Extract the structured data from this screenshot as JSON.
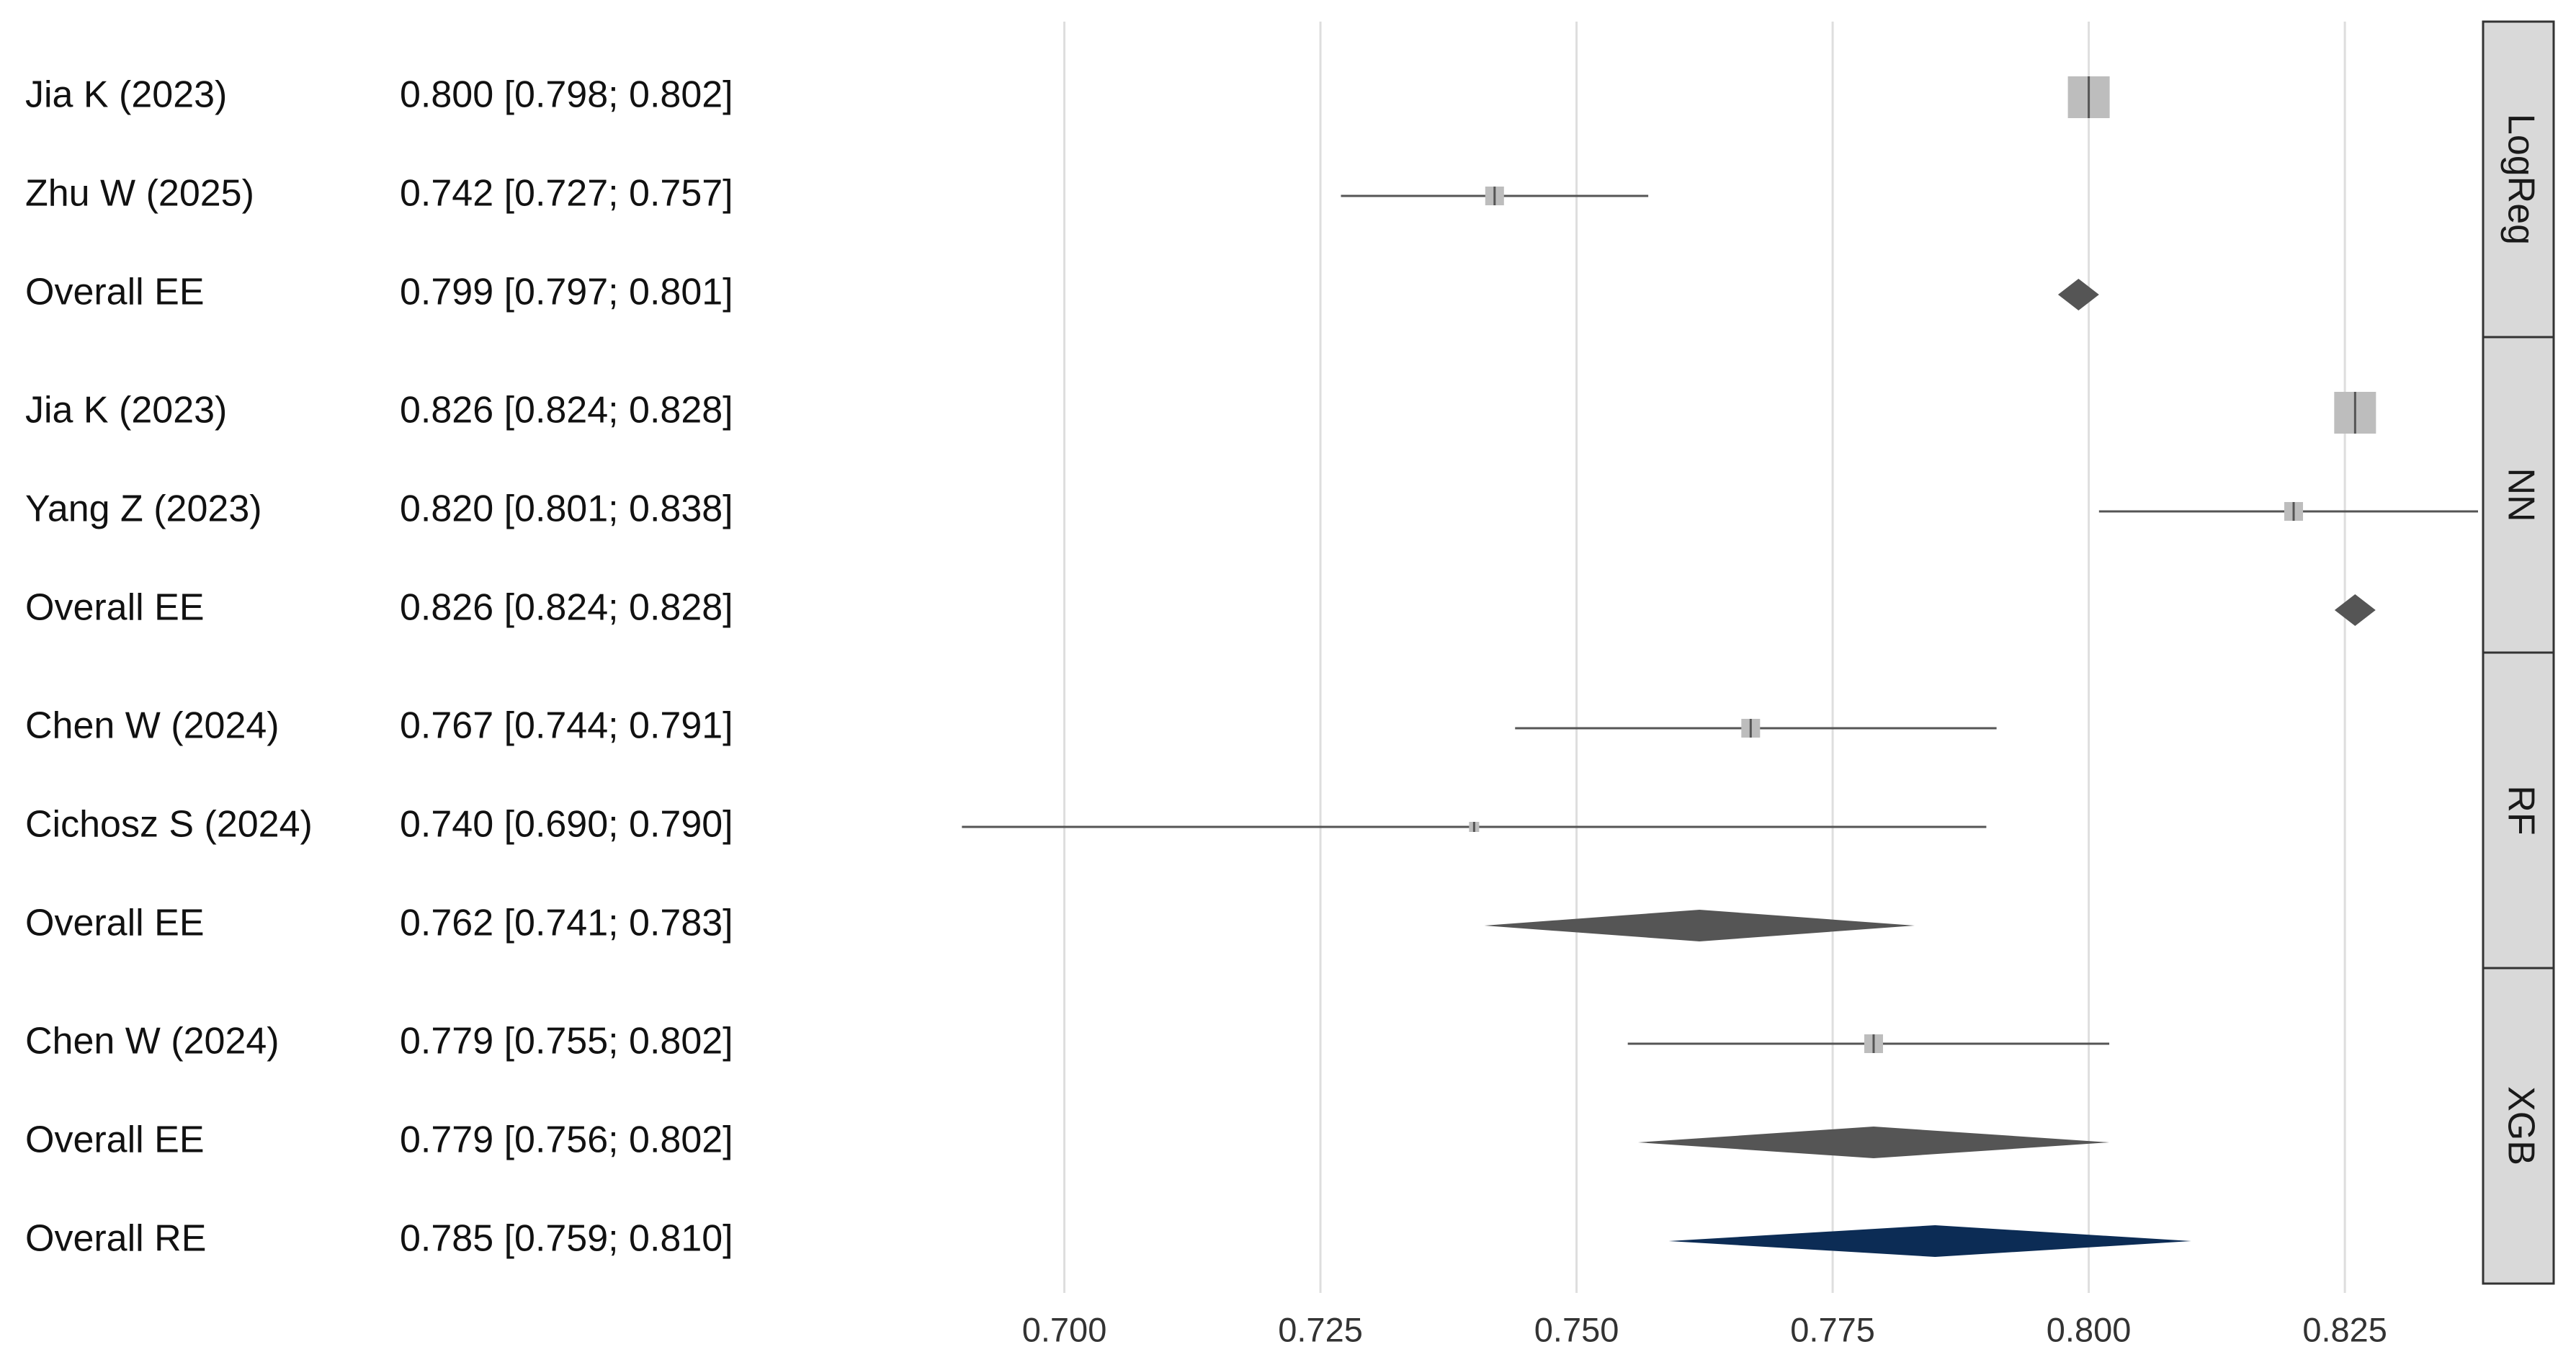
{
  "colors": {
    "grid": "#dedede",
    "line": "#555555",
    "box": "#bdbdbd",
    "diamond_ee": "#555555",
    "diamond_re": "#0c2c55",
    "strip_fill": "#d9d9d9",
    "strip_border": "#333333"
  },
  "chart_data": {
    "type": "forest",
    "xlim": [
      0.684,
      0.838
    ],
    "xticks": [
      0.7,
      0.725,
      0.75,
      0.775,
      0.8,
      0.825
    ],
    "xtick_labels": [
      "0.700",
      "0.725",
      "0.750",
      "0.775",
      "0.800",
      "0.825"
    ],
    "grid": true,
    "groups": [
      {
        "name": "LogReg",
        "rows": [
          {
            "label": "Jia K (2023)",
            "ci_text": "0.800 [0.798; 0.802]",
            "est": 0.8,
            "lo": 0.798,
            "hi": 0.802,
            "kind": "study",
            "weight": "large"
          },
          {
            "label": "Zhu W (2025)",
            "ci_text": "0.742 [0.727; 0.757]",
            "est": 0.742,
            "lo": 0.727,
            "hi": 0.757,
            "kind": "study",
            "weight": "small"
          },
          {
            "label": "Overall EE",
            "ci_text": "0.799 [0.797; 0.801]",
            "est": 0.799,
            "lo": 0.797,
            "hi": 0.801,
            "kind": "ee"
          }
        ]
      },
      {
        "name": "NN",
        "rows": [
          {
            "label": "Jia K (2023)",
            "ci_text": "0.826 [0.824; 0.828]",
            "est": 0.826,
            "lo": 0.824,
            "hi": 0.828,
            "kind": "study",
            "weight": "large"
          },
          {
            "label": "Yang Z (2023)",
            "ci_text": "0.820 [0.801; 0.838]",
            "est": 0.82,
            "lo": 0.801,
            "hi": 0.838,
            "kind": "study",
            "weight": "small"
          },
          {
            "label": "Overall EE",
            "ci_text": "0.826 [0.824; 0.828]",
            "est": 0.826,
            "lo": 0.824,
            "hi": 0.828,
            "kind": "ee"
          }
        ]
      },
      {
        "name": "RF",
        "rows": [
          {
            "label": "Chen W (2024)",
            "ci_text": "0.767 [0.744; 0.791]",
            "est": 0.767,
            "lo": 0.744,
            "hi": 0.791,
            "kind": "study",
            "weight": "small"
          },
          {
            "label": "Cichosz S (2024)",
            "ci_text": "0.740 [0.690; 0.790]",
            "est": 0.74,
            "lo": 0.69,
            "hi": 0.79,
            "kind": "study",
            "weight": "tiny"
          },
          {
            "label": "Overall EE",
            "ci_text": "0.762 [0.741; 0.783]",
            "est": 0.762,
            "lo": 0.741,
            "hi": 0.783,
            "kind": "ee"
          }
        ]
      },
      {
        "name": "XGB",
        "rows": [
          {
            "label": "Chen W (2024)",
            "ci_text": "0.779 [0.755; 0.802]",
            "est": 0.779,
            "lo": 0.755,
            "hi": 0.802,
            "kind": "study",
            "weight": "small"
          },
          {
            "label": "Overall EE",
            "ci_text": "0.779 [0.756; 0.802]",
            "est": 0.779,
            "lo": 0.756,
            "hi": 0.802,
            "kind": "ee"
          },
          {
            "label": "Overall RE",
            "ci_text": "0.785 [0.759; 0.810]",
            "est": 0.785,
            "lo": 0.759,
            "hi": 0.81,
            "kind": "re"
          }
        ]
      }
    ]
  }
}
